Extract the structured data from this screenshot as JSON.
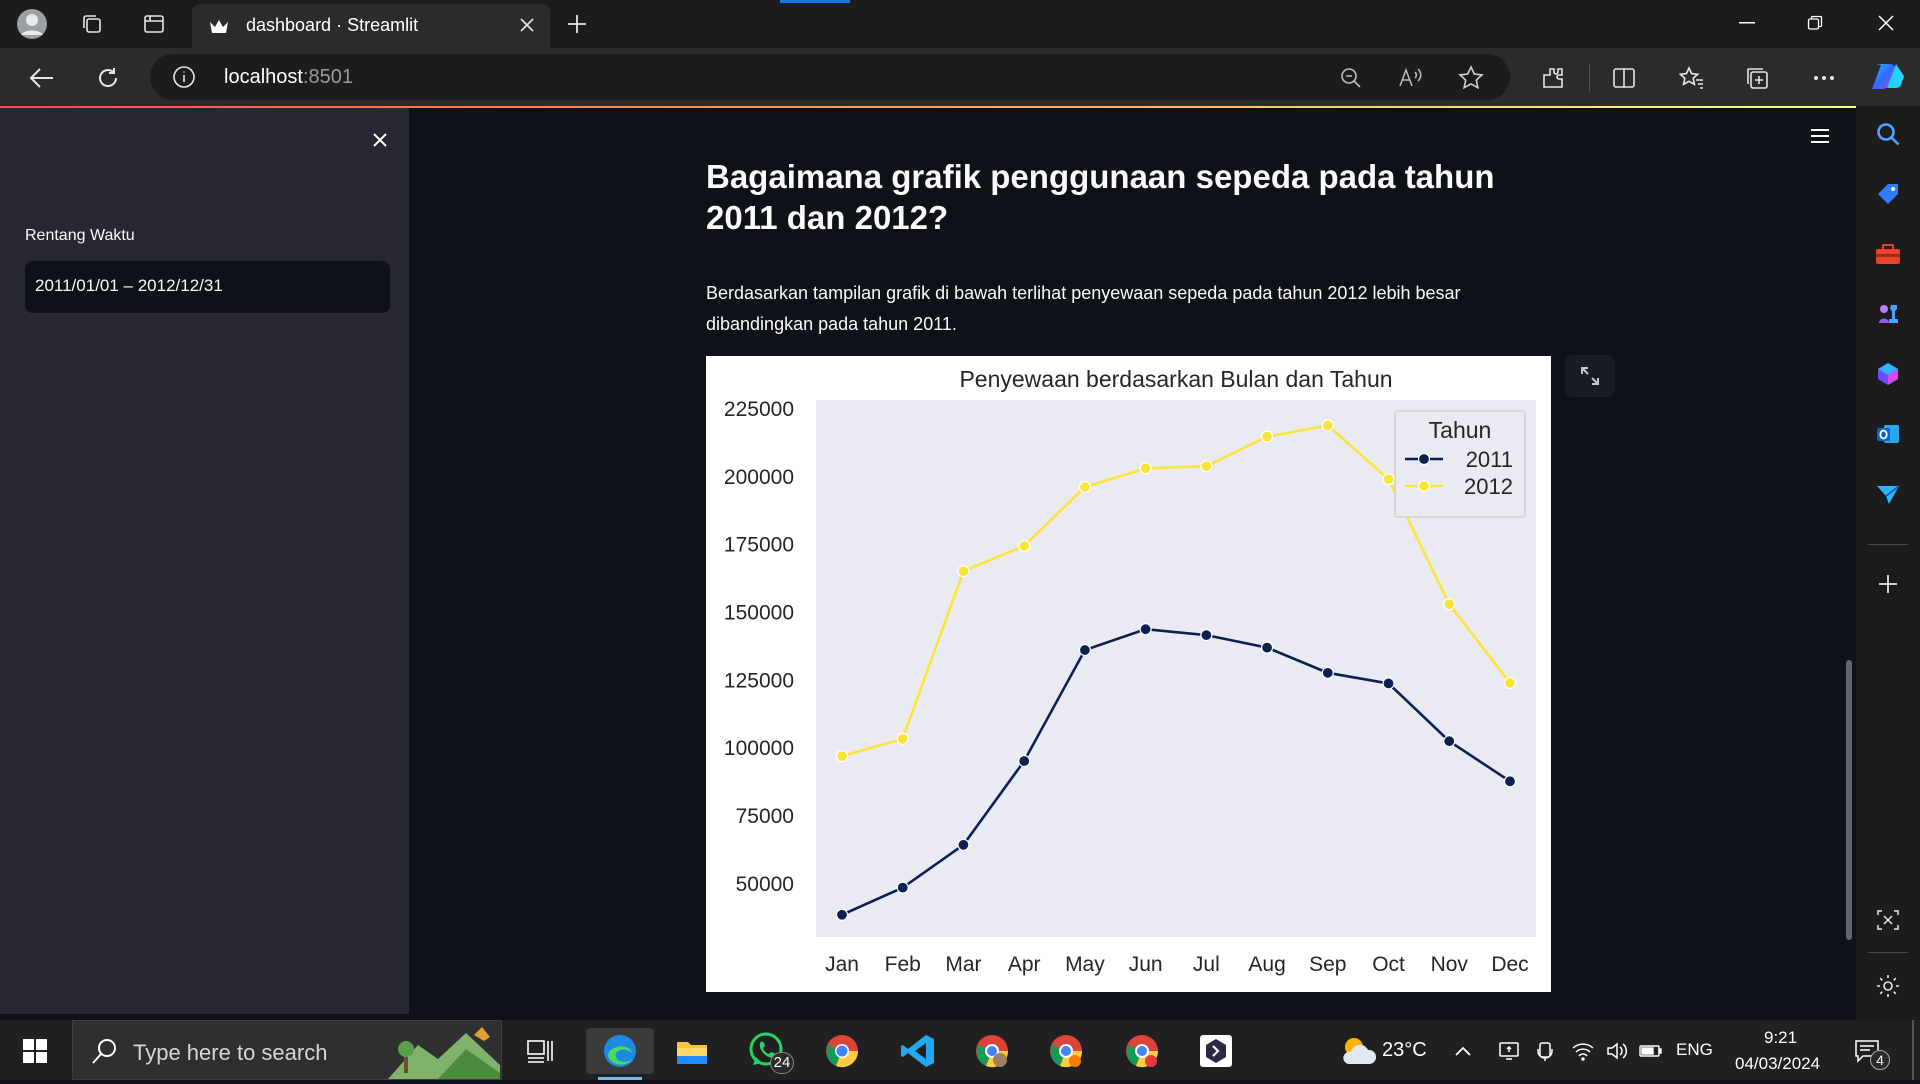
{
  "browser": {
    "tab_title": "dashboard · Streamlit",
    "url_host": "localhost",
    "url_port": ":8501"
  },
  "sidebar": {
    "date_label": "Rentang Waktu",
    "date_value": "2011/01/01 – 2012/12/31"
  },
  "main": {
    "heading": "Bagaimana grafik penggunaan sepeda pada tahun 2011 dan 2012?",
    "paragraph": "Berdasarkan tampilan grafik di bawah terlihat penyewaan sepeda pada tahun 2012 lebih besar dibandingkan pada tahun 2011."
  },
  "chart_data": {
    "type": "line",
    "title": "Penyewaan berdasarkan Bulan dan Tahun",
    "xlabel": "",
    "ylabel": "",
    "categories": [
      "Jan",
      "Feb",
      "Mar",
      "Apr",
      "May",
      "Jun",
      "Jul",
      "Aug",
      "Sep",
      "Oct",
      "Nov",
      "Dec"
    ],
    "yticks": [
      50000,
      75000,
      100000,
      125000,
      150000,
      175000,
      200000,
      225000
    ],
    "ylim": [
      30000,
      228000
    ],
    "legend_title": "Tahun",
    "legend_position": "top-right",
    "grid": false,
    "background": "#eaeaf2",
    "series": [
      {
        "name": "2011",
        "color": "#0a2152",
        "values": [
          38200,
          48200,
          64000,
          94900,
          135800,
          143500,
          141300,
          136700,
          127400,
          123500,
          102200,
          87400
        ]
      },
      {
        "name": "2012",
        "color": "#f9e53a",
        "values": [
          96700,
          103100,
          164900,
          174200,
          195900,
          202800,
          203600,
          214500,
          218600,
          198800,
          152700,
          123700
        ]
      }
    ]
  },
  "taskbar": {
    "search_placeholder": "Type here to search",
    "whatsapp_badge": "24",
    "weather": "23°C",
    "lang": "ENG",
    "time": "9:21",
    "date": "04/03/2024",
    "notif_count": "4"
  },
  "colors": {
    "streamlit_bg": "#0e1117",
    "streamlit_sidebar": "#262730",
    "accent_red": "#ff4b4b"
  }
}
